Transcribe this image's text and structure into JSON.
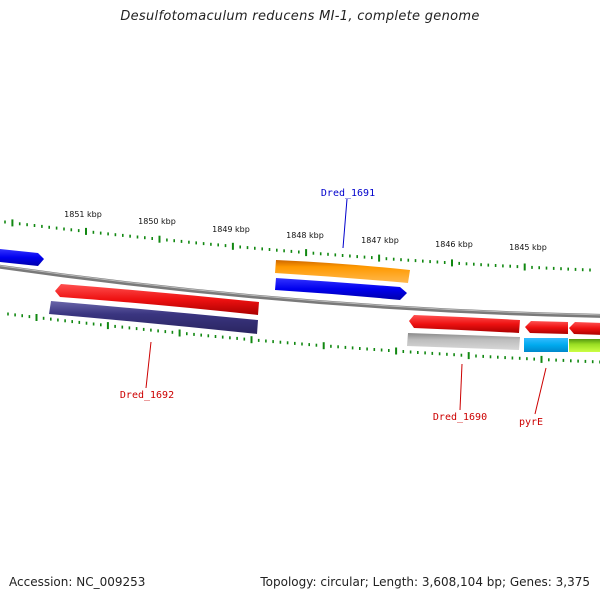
{
  "title": "Desulfotomaculum reducens MI-1, complete genome",
  "footer": {
    "accession": "Accession: NC_009253",
    "stats": "Topology: circular; Length: 3,608,104 bp; Genes: 3,375"
  },
  "scale_labels": [
    "1851 kbp",
    "1850 kbp",
    "1849 kbp",
    "1848 kbp",
    "1847 kbp",
    "1846 kbp",
    "1845 kbp"
  ],
  "gene_labels": [
    {
      "text": "Dred_1691",
      "color": "#0000cc"
    },
    {
      "text": "Dred_1692",
      "color": "#cc0000"
    },
    {
      "text": "Dred_1690",
      "color": "#cc0000"
    },
    {
      "text": "pyrE",
      "color": "#cc0000"
    }
  ],
  "colors": {
    "backbone": "#808080",
    "ticks": "#118811",
    "forward_red": "#ee1111",
    "orange": "#ff9900",
    "blue": "#0000ee",
    "navy": "#3a3580",
    "grey": "#b0b0b0",
    "cyan": "#00aaee",
    "lime": "#99dd22"
  }
}
